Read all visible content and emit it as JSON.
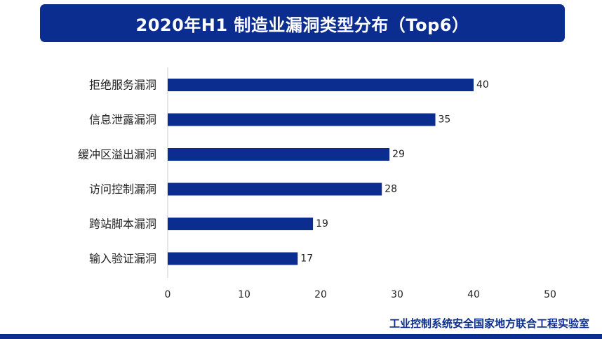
{
  "colors": {
    "brand": "#0a2d8f",
    "bar": "#0a2d8f",
    "text": "#222222",
    "axis": "#cccccc"
  },
  "chart_data": {
    "type": "bar",
    "orientation": "horizontal",
    "title": "2020年H1 制造业漏洞类型分布（Top6）",
    "categories": [
      "拒绝服务漏洞",
      "信息泄露漏洞",
      "缓冲区溢出漏洞",
      "访问控制漏洞",
      "跨站脚本漏洞",
      "输入验证漏洞"
    ],
    "values": [
      40,
      35,
      29,
      28,
      19,
      17
    ],
    "xlim": [
      0,
      50
    ],
    "xticks": [
      0,
      10,
      20,
      30,
      40,
      50
    ],
    "data_labels": true,
    "grid": false,
    "legend": "none"
  },
  "footer": {
    "organization": "工业控制系统安全国家地方联合工程实验室"
  }
}
